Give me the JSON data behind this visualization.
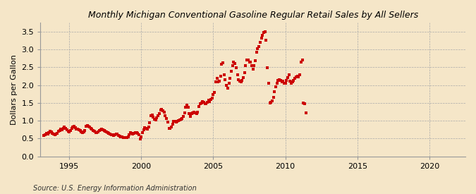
{
  "title": "Monthly Michigan Conventional Gasoline Regular Retail Sales by All Sellers",
  "ylabel": "Dollars per Gallon",
  "source": "Source: U.S. Energy Information Administration",
  "background_color": "#f5e6c8",
  "plot_bg_color": "#f5e6c8",
  "marker_color": "#cc0000",
  "marker": "s",
  "markersize": 2.8,
  "xlim_left": 1993.0,
  "xlim_right": 2022.5,
  "ylim_bottom": 0.0,
  "ylim_top": 3.75,
  "yticks": [
    0.0,
    0.5,
    1.0,
    1.5,
    2.0,
    2.5,
    3.0,
    3.5
  ],
  "xticks": [
    1995,
    2000,
    2005,
    2010,
    2015,
    2020
  ],
  "data": [
    [
      1993.25,
      0.59
    ],
    [
      1993.33,
      0.61
    ],
    [
      1993.42,
      0.64
    ],
    [
      1993.5,
      0.63
    ],
    [
      1993.58,
      0.67
    ],
    [
      1993.67,
      0.71
    ],
    [
      1993.75,
      0.68
    ],
    [
      1993.83,
      0.65
    ],
    [
      1993.92,
      0.62
    ],
    [
      1994.0,
      0.6
    ],
    [
      1994.08,
      0.62
    ],
    [
      1994.17,
      0.65
    ],
    [
      1994.25,
      0.7
    ],
    [
      1994.33,
      0.73
    ],
    [
      1994.42,
      0.76
    ],
    [
      1994.5,
      0.74
    ],
    [
      1994.58,
      0.79
    ],
    [
      1994.67,
      0.82
    ],
    [
      1994.75,
      0.78
    ],
    [
      1994.83,
      0.74
    ],
    [
      1994.92,
      0.71
    ],
    [
      1995.0,
      0.68
    ],
    [
      1995.08,
      0.73
    ],
    [
      1995.17,
      0.78
    ],
    [
      1995.25,
      0.82
    ],
    [
      1995.33,
      0.85
    ],
    [
      1995.42,
      0.81
    ],
    [
      1995.5,
      0.76
    ],
    [
      1995.58,
      0.77
    ],
    [
      1995.67,
      0.75
    ],
    [
      1995.75,
      0.72
    ],
    [
      1995.83,
      0.69
    ],
    [
      1995.92,
      0.67
    ],
    [
      1996.0,
      0.69
    ],
    [
      1996.08,
      0.73
    ],
    [
      1996.17,
      0.84
    ],
    [
      1996.25,
      0.87
    ],
    [
      1996.33,
      0.85
    ],
    [
      1996.42,
      0.82
    ],
    [
      1996.5,
      0.78
    ],
    [
      1996.58,
      0.76
    ],
    [
      1996.67,
      0.73
    ],
    [
      1996.75,
      0.7
    ],
    [
      1996.83,
      0.66
    ],
    [
      1996.92,
      0.67
    ],
    [
      1997.0,
      0.69
    ],
    [
      1997.08,
      0.72
    ],
    [
      1997.17,
      0.75
    ],
    [
      1997.25,
      0.77
    ],
    [
      1997.33,
      0.75
    ],
    [
      1997.42,
      0.72
    ],
    [
      1997.5,
      0.7
    ],
    [
      1997.58,
      0.69
    ],
    [
      1997.67,
      0.67
    ],
    [
      1997.75,
      0.64
    ],
    [
      1997.83,
      0.63
    ],
    [
      1997.92,
      0.61
    ],
    [
      1998.0,
      0.6
    ],
    [
      1998.08,
      0.59
    ],
    [
      1998.17,
      0.61
    ],
    [
      1998.25,
      0.63
    ],
    [
      1998.33,
      0.62
    ],
    [
      1998.42,
      0.58
    ],
    [
      1998.5,
      0.56
    ],
    [
      1998.58,
      0.55
    ],
    [
      1998.67,
      0.54
    ],
    [
      1998.75,
      0.53
    ],
    [
      1998.83,
      0.53
    ],
    [
      1998.92,
      0.52
    ],
    [
      1999.0,
      0.53
    ],
    [
      1999.08,
      0.55
    ],
    [
      1999.17,
      0.61
    ],
    [
      1999.25,
      0.66
    ],
    [
      1999.33,
      0.65
    ],
    [
      1999.42,
      0.63
    ],
    [
      1999.5,
      0.64
    ],
    [
      1999.58,
      0.66
    ],
    [
      1999.67,
      0.66
    ],
    [
      1999.75,
      0.64
    ],
    [
      1999.83,
      0.6
    ],
    [
      1999.92,
      0.49
    ],
    [
      2000.0,
      0.55
    ],
    [
      2000.08,
      0.66
    ],
    [
      2000.17,
      0.74
    ],
    [
      2000.25,
      0.8
    ],
    [
      2000.33,
      0.79
    ],
    [
      2000.42,
      0.76
    ],
    [
      2000.5,
      0.82
    ],
    [
      2000.58,
      0.95
    ],
    [
      2000.67,
      1.15
    ],
    [
      2000.75,
      1.17
    ],
    [
      2000.83,
      1.1
    ],
    [
      2000.92,
      1.05
    ],
    [
      2001.0,
      1.02
    ],
    [
      2001.08,
      1.09
    ],
    [
      2001.17,
      1.14
    ],
    [
      2001.25,
      1.19
    ],
    [
      2001.33,
      1.3
    ],
    [
      2001.42,
      1.32
    ],
    [
      2001.5,
      1.27
    ],
    [
      2001.58,
      1.24
    ],
    [
      2001.67,
      1.14
    ],
    [
      2001.75,
      1.07
    ],
    [
      2001.83,
      0.97
    ],
    [
      2001.92,
      0.78
    ],
    [
      2002.0,
      0.79
    ],
    [
      2002.08,
      0.83
    ],
    [
      2002.17,
      0.91
    ],
    [
      2002.25,
      0.99
    ],
    [
      2002.33,
      0.98
    ],
    [
      2002.42,
      0.97
    ],
    [
      2002.5,
      0.99
    ],
    [
      2002.58,
      1.01
    ],
    [
      2002.67,
      1.03
    ],
    [
      2002.75,
      1.04
    ],
    [
      2002.83,
      1.06
    ],
    [
      2002.92,
      1.12
    ],
    [
      2003.0,
      1.22
    ],
    [
      2003.08,
      1.37
    ],
    [
      2003.17,
      1.44
    ],
    [
      2003.25,
      1.37
    ],
    [
      2003.33,
      1.2
    ],
    [
      2003.42,
      1.13
    ],
    [
      2003.5,
      1.2
    ],
    [
      2003.58,
      1.22
    ],
    [
      2003.67,
      1.24
    ],
    [
      2003.75,
      1.21
    ],
    [
      2003.83,
      1.19
    ],
    [
      2003.92,
      1.24
    ],
    [
      2004.0,
      1.4
    ],
    [
      2004.08,
      1.47
    ],
    [
      2004.17,
      1.5
    ],
    [
      2004.25,
      1.54
    ],
    [
      2004.33,
      1.52
    ],
    [
      2004.42,
      1.47
    ],
    [
      2004.5,
      1.47
    ],
    [
      2004.58,
      1.52
    ],
    [
      2004.67,
      1.57
    ],
    [
      2004.75,
      1.54
    ],
    [
      2004.83,
      1.6
    ],
    [
      2004.92,
      1.64
    ],
    [
      2005.0,
      1.74
    ],
    [
      2005.08,
      1.8
    ],
    [
      2005.17,
      2.08
    ],
    [
      2005.25,
      2.18
    ],
    [
      2005.33,
      2.08
    ],
    [
      2005.42,
      2.1
    ],
    [
      2005.5,
      2.25
    ],
    [
      2005.58,
      2.58
    ],
    [
      2005.67,
      2.62
    ],
    [
      2005.75,
      2.28
    ],
    [
      2005.83,
      2.15
    ],
    [
      2005.92,
      2.0
    ],
    [
      2006.0,
      1.92
    ],
    [
      2006.08,
      2.05
    ],
    [
      2006.17,
      2.18
    ],
    [
      2006.25,
      2.38
    ],
    [
      2006.33,
      2.55
    ],
    [
      2006.42,
      2.65
    ],
    [
      2006.5,
      2.6
    ],
    [
      2006.58,
      2.48
    ],
    [
      2006.67,
      2.28
    ],
    [
      2006.75,
      2.15
    ],
    [
      2006.83,
      2.1
    ],
    [
      2006.92,
      2.08
    ],
    [
      2007.0,
      2.12
    ],
    [
      2007.08,
      2.2
    ],
    [
      2007.17,
      2.35
    ],
    [
      2007.25,
      2.55
    ],
    [
      2007.33,
      2.7
    ],
    [
      2007.42,
      2.7
    ],
    [
      2007.5,
      2.65
    ],
    [
      2007.58,
      2.65
    ],
    [
      2007.67,
      2.55
    ],
    [
      2007.75,
      2.45
    ],
    [
      2007.83,
      2.55
    ],
    [
      2007.92,
      2.68
    ],
    [
      2008.0,
      2.92
    ],
    [
      2008.08,
      3.02
    ],
    [
      2008.17,
      3.08
    ],
    [
      2008.25,
      3.2
    ],
    [
      2008.33,
      3.32
    ],
    [
      2008.42,
      3.4
    ],
    [
      2008.5,
      3.48
    ],
    [
      2008.58,
      3.5
    ],
    [
      2008.67,
      3.25
    ],
    [
      2008.75,
      2.48
    ],
    [
      2008.83,
      2.05
    ],
    [
      2008.92,
      1.5
    ],
    [
      2009.0,
      1.52
    ],
    [
      2009.08,
      1.55
    ],
    [
      2009.17,
      1.65
    ],
    [
      2009.25,
      1.82
    ],
    [
      2009.33,
      1.95
    ],
    [
      2009.42,
      2.05
    ],
    [
      2009.5,
      2.12
    ],
    [
      2009.58,
      2.15
    ],
    [
      2009.67,
      2.12
    ],
    [
      2009.75,
      2.08
    ],
    [
      2009.83,
      2.1
    ],
    [
      2009.92,
      2.05
    ],
    [
      2010.0,
      2.05
    ],
    [
      2010.08,
      2.12
    ],
    [
      2010.17,
      2.2
    ],
    [
      2010.25,
      2.28
    ],
    [
      2010.33,
      2.1
    ],
    [
      2010.42,
      2.05
    ],
    [
      2010.5,
      2.08
    ],
    [
      2010.58,
      2.12
    ],
    [
      2010.67,
      2.18
    ],
    [
      2010.75,
      2.22
    ],
    [
      2010.83,
      2.25
    ],
    [
      2010.92,
      2.22
    ],
    [
      2011.0,
      2.28
    ],
    [
      2011.08,
      2.65
    ],
    [
      2011.17,
      2.7
    ],
    [
      2011.25,
      1.5
    ],
    [
      2011.33,
      1.48
    ],
    [
      2011.42,
      1.22
    ]
  ]
}
